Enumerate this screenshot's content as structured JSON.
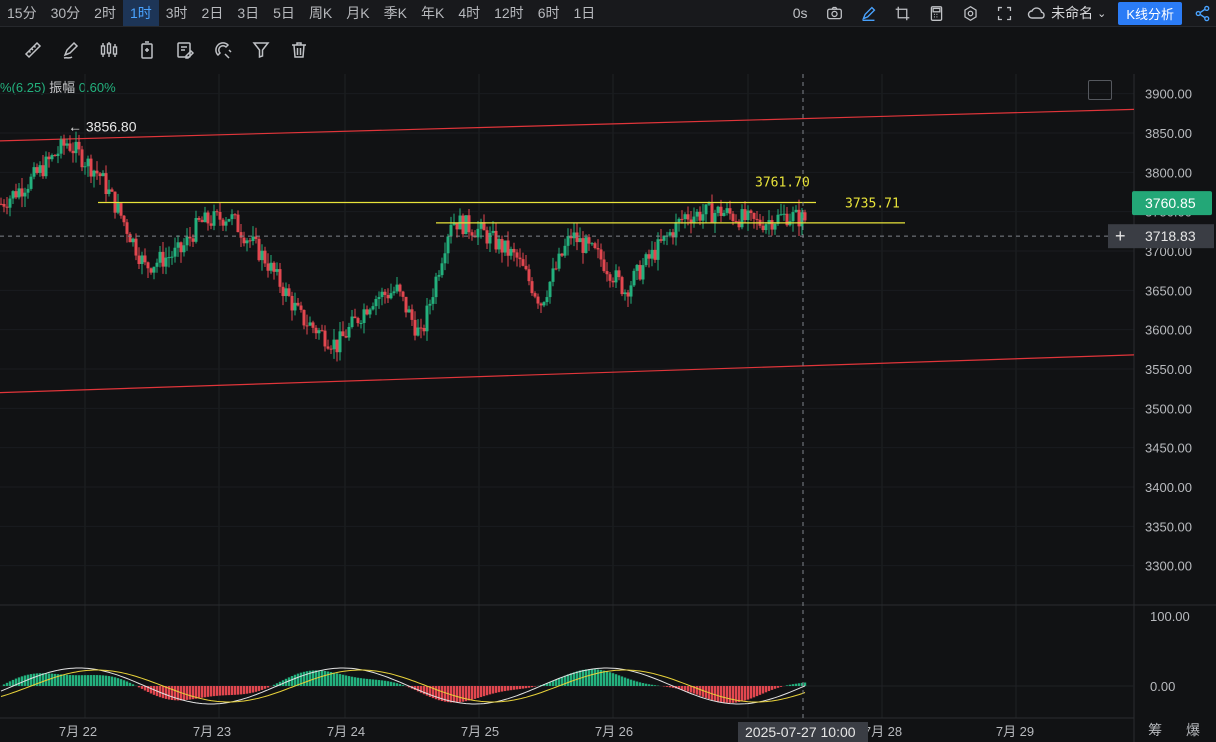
{
  "timeframes": [
    "15分",
    "30分",
    "2时",
    "1时",
    "3时",
    "2日",
    "3日",
    "5日",
    "周K",
    "月K",
    "季K",
    "年K",
    "4时",
    "12时",
    "6时",
    "1日"
  ],
  "active_timeframe": "1时",
  "topbar": {
    "countdown": "0s",
    "layout_name": "未命名",
    "kline_button": "K线分析"
  },
  "toolbar_icons": [
    "ruler-icon",
    "pen-icon",
    "candles-icon",
    "timer-icon",
    "edit-icon",
    "magnet-icon",
    "filter-icon",
    "trash-icon"
  ],
  "info_line": {
    "change": "%(6.25)",
    "amplitude_label": "振幅",
    "amplitude_value": "0.60%"
  },
  "colors": {
    "up": "#23b07d",
    "down": "#e2474f",
    "hline": "#e8e33a",
    "trend": "#e0353a",
    "bg": "#111214",
    "dif": "#e3e3e3",
    "dea": "#e8d23a"
  },
  "chart_data": {
    "type": "candlestick",
    "ylim": [
      3250,
      3925
    ],
    "y_ticks": [
      "3900.00",
      "3850.00",
      "3800.00",
      "3750.00",
      "3700.00",
      "3650.00",
      "3600.00",
      "3550.00",
      "3500.00",
      "3450.00",
      "3400.00",
      "3350.00",
      "3300.00"
    ],
    "x_ticks": [
      "7月 22",
      "7月 23",
      "7月 24",
      "7月 25",
      "7月 26",
      "7月 28",
      "7月 29"
    ],
    "high_annotation": "← 3856.80",
    "annotation_3761": "3761.70",
    "annotation_3735": "3735.71",
    "horizontal_levels": [
      3761.7,
      3735.71
    ],
    "price_label_current": "3760.85",
    "price_label_cursor": "3718.83",
    "cursor_time": "2025-07-27 10:00",
    "trend_lines": [
      {
        "from": [
          0,
          3840
        ],
        "to": [
          1,
          3880
        ]
      },
      {
        "from": [
          0,
          3520
        ],
        "to": [
          1,
          3568
        ]
      }
    ],
    "macd_ticks": [
      "100.00",
      "0.00"
    ]
  },
  "bottom_right": "筹 爆"
}
